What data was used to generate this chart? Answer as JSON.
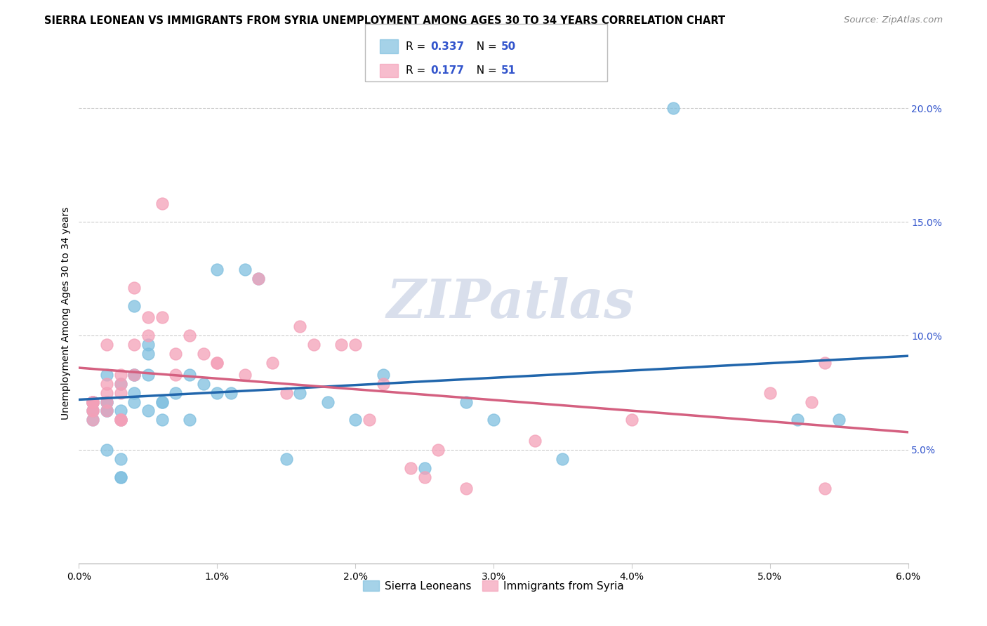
{
  "title": "SIERRA LEONEAN VS IMMIGRANTS FROM SYRIA UNEMPLOYMENT AMONG AGES 30 TO 34 YEARS CORRELATION CHART",
  "source": "Source: ZipAtlas.com",
  "ylabel": "Unemployment Among Ages 30 to 34 years",
  "xlim": [
    0.0,
    0.06
  ],
  "ylim": [
    0.0,
    0.22
  ],
  "xticks": [
    0.0,
    0.01,
    0.02,
    0.03,
    0.04,
    0.05,
    0.06
  ],
  "xtick_labels": [
    "0.0%",
    "1.0%",
    "2.0%",
    "3.0%",
    "4.0%",
    "5.0%",
    "6.0%"
  ],
  "yticks_right": [
    0.05,
    0.1,
    0.15,
    0.2
  ],
  "ytick_labels_right": [
    "5.0%",
    "10.0%",
    "15.0%",
    "20.0%"
  ],
  "legend1_R": "0.337",
  "legend1_N": "50",
  "legend2_R": "0.177",
  "legend2_N": "51",
  "legend1_label": "Sierra Leoneans",
  "legend2_label": "Immigrants from Syria",
  "blue_color": "#7fbfdf",
  "pink_color": "#f4a0b8",
  "blue_line_color": "#2166ac",
  "pink_line_color": "#d46080",
  "legend_color": "#3355cc",
  "background_color": "#ffffff",
  "grid_color": "#cccccc",
  "title_fontsize": 10.5,
  "source_fontsize": 9.5,
  "axis_label_fontsize": 10,
  "tick_fontsize": 10,
  "watermark_text": "ZIPatlas",
  "blue_x": [
    0.001,
    0.001,
    0.001,
    0.001,
    0.001,
    0.002,
    0.002,
    0.002,
    0.002,
    0.002,
    0.002,
    0.003,
    0.003,
    0.003,
    0.003,
    0.003,
    0.003,
    0.004,
    0.004,
    0.004,
    0.004,
    0.004,
    0.005,
    0.005,
    0.005,
    0.005,
    0.006,
    0.006,
    0.006,
    0.007,
    0.008,
    0.008,
    0.009,
    0.01,
    0.01,
    0.011,
    0.012,
    0.013,
    0.015,
    0.016,
    0.018,
    0.02,
    0.022,
    0.025,
    0.028,
    0.03,
    0.035,
    0.043,
    0.052,
    0.055
  ],
  "blue_y": [
    0.071,
    0.071,
    0.071,
    0.067,
    0.063,
    0.071,
    0.071,
    0.083,
    0.067,
    0.067,
    0.05,
    0.079,
    0.046,
    0.038,
    0.038,
    0.067,
    0.063,
    0.075,
    0.083,
    0.083,
    0.113,
    0.071,
    0.083,
    0.092,
    0.096,
    0.067,
    0.071,
    0.071,
    0.063,
    0.075,
    0.083,
    0.063,
    0.079,
    0.129,
    0.075,
    0.075,
    0.129,
    0.125,
    0.046,
    0.075,
    0.071,
    0.063,
    0.083,
    0.042,
    0.071,
    0.063,
    0.046,
    0.2,
    0.063,
    0.063
  ],
  "pink_x": [
    0.001,
    0.001,
    0.001,
    0.001,
    0.001,
    0.001,
    0.001,
    0.002,
    0.002,
    0.002,
    0.002,
    0.002,
    0.003,
    0.003,
    0.003,
    0.003,
    0.003,
    0.003,
    0.004,
    0.004,
    0.004,
    0.005,
    0.005,
    0.006,
    0.006,
    0.007,
    0.007,
    0.008,
    0.009,
    0.01,
    0.01,
    0.012,
    0.013,
    0.014,
    0.015,
    0.016,
    0.017,
    0.019,
    0.02,
    0.021,
    0.022,
    0.024,
    0.025,
    0.026,
    0.028,
    0.033,
    0.04,
    0.05,
    0.053,
    0.054,
    0.054
  ],
  "pink_y": [
    0.063,
    0.067,
    0.067,
    0.071,
    0.071,
    0.071,
    0.071,
    0.067,
    0.071,
    0.075,
    0.079,
    0.096,
    0.063,
    0.063,
    0.063,
    0.075,
    0.079,
    0.083,
    0.083,
    0.096,
    0.121,
    0.108,
    0.1,
    0.108,
    0.158,
    0.083,
    0.092,
    0.1,
    0.092,
    0.088,
    0.088,
    0.083,
    0.125,
    0.088,
    0.075,
    0.104,
    0.096,
    0.096,
    0.096,
    0.063,
    0.079,
    0.042,
    0.038,
    0.05,
    0.033,
    0.054,
    0.063,
    0.075,
    0.071,
    0.088,
    0.033
  ]
}
